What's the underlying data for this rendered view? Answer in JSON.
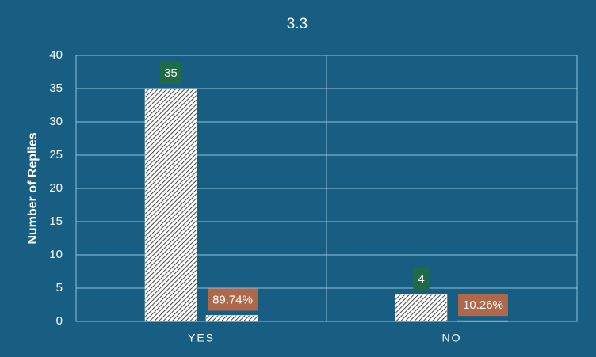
{
  "chart_data": {
    "type": "bar",
    "title": "3.3",
    "y_label": "Number of Replies",
    "categories": [
      "YES",
      "NO"
    ],
    "series": [
      {
        "color": "#ffffff",
        "values": [
          35,
          4
        ],
        "label_color": "#1e6b45"
      },
      {
        "color": "#ffffff",
        "values": [
          0.8974,
          0.1026
        ],
        "value_labels": [
          "89.74%",
          "10.26%"
        ],
        "label_color": "#b0684a"
      }
    ],
    "ylim": [
      0,
      40
    ],
    "yticks": [
      0,
      5,
      10,
      15,
      20,
      25,
      30,
      35,
      40
    ],
    "grid": true
  }
}
